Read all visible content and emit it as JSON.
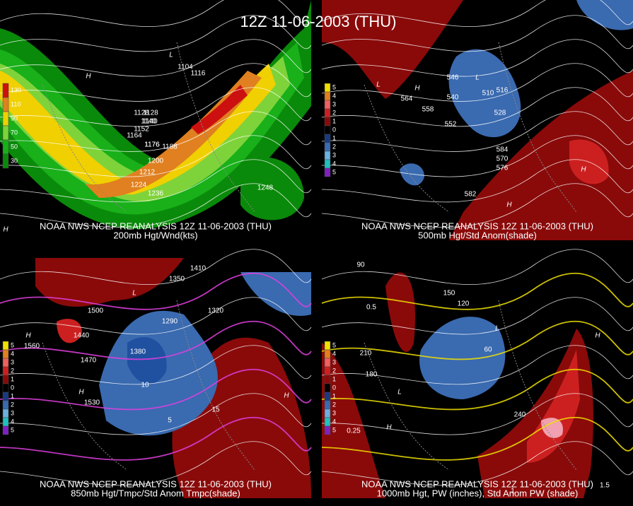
{
  "title": "12Z 11-06-2003 (THU)",
  "panels": [
    {
      "caption": [
        "NOAA NWS NCEP REANALYSIS 12Z 11-06-2003 (THU)",
        "200mb Hgt/Wnd(kts)"
      ],
      "legend": [
        "130",
        "110",
        "90",
        "70",
        "50",
        "30"
      ],
      "labels": [
        "1128",
        "1140",
        "1176",
        "1104",
        "1116",
        "1128",
        "1140",
        "1152",
        "1164",
        "1176",
        "1188",
        "1200",
        "1212",
        "1224",
        "1236",
        "1248",
        "H",
        "L",
        "H"
      ]
    },
    {
      "caption": [
        "NOAA NWS NCEP REANALYSIS 12Z 11-06-2003 (THU)",
        "500mb Hgt/Std Anom(shade)"
      ],
      "legend": [
        "5",
        "4",
        "3",
        "2",
        "1",
        "0",
        "1",
        "2",
        "3",
        "4",
        "5"
      ],
      "labels": [
        "546",
        "552",
        "558",
        "540",
        "516",
        "528",
        "510",
        "564",
        "570",
        "576",
        "582",
        "584",
        "L",
        "L",
        "H",
        "H",
        "H"
      ]
    },
    {
      "caption": [
        "NOAA NWS NCEP REANALYSIS 12Z 11-06-2003 (THU)",
        "850mb Hgt/Tmpc/Std Anom Tmpc(shade)"
      ],
      "legend": [
        "5",
        "4",
        "3",
        "2",
        "1",
        "0",
        "1",
        "2",
        "3",
        "4",
        "5"
      ],
      "labels": [
        "1500",
        "1440",
        "1470",
        "1530",
        "1560",
        "1350",
        "1320",
        "1290",
        "1410",
        "1380",
        "10",
        "15",
        "5",
        "H",
        "H",
        "L",
        "H"
      ]
    },
    {
      "caption": [
        "NOAA NWS NCEP REANALYSIS 12Z 11-06-2003 (THU)",
        "1000mb Hgt, PW (inches), Std Anom PW (shade)"
      ],
      "legend": [
        "5",
        "4",
        "3",
        "2",
        "1",
        "0",
        "1",
        "2",
        "3",
        "4",
        "5"
      ],
      "labels": [
        "90",
        "150",
        "120",
        "180",
        "210",
        "240",
        "0.5",
        "1",
        "1.5",
        "0.25",
        "60",
        "H",
        "L",
        "L",
        "H"
      ]
    }
  ]
}
